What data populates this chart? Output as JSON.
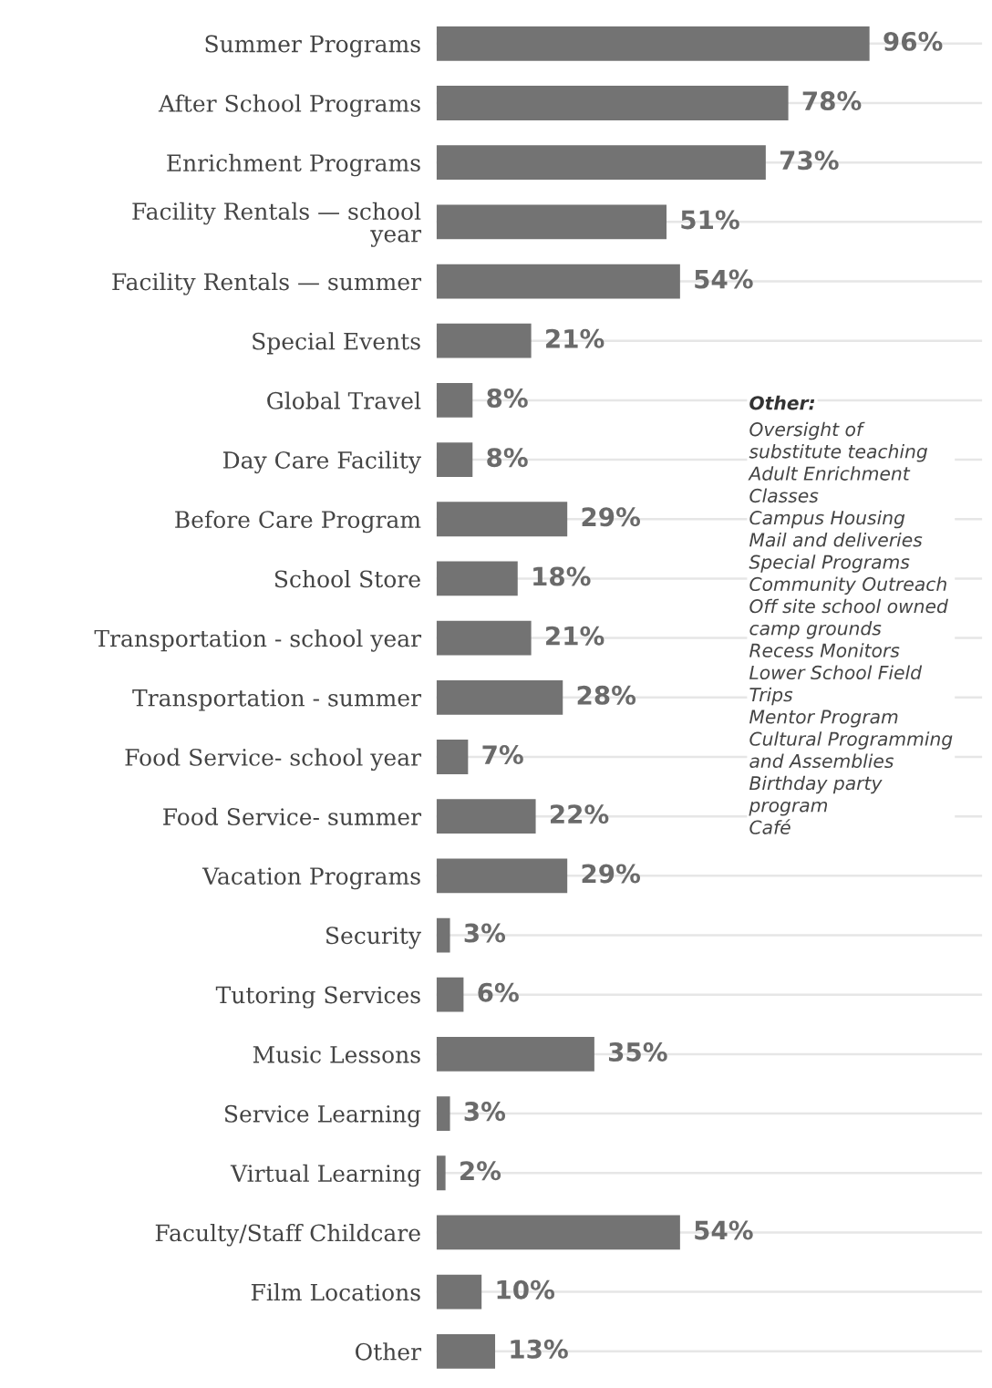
{
  "chart_data": {
    "type": "bar",
    "orientation": "horizontal",
    "categories": [
      "Summer Programs",
      "After School Programs",
      "Enrichment Programs",
      "Facility Rentals — school\nyear",
      "Facility Rentals — summer",
      "Special Events",
      "Global Travel",
      "Day Care Facility",
      "Before Care Program",
      "School Store",
      "Transportation - school year",
      "Transportation - summer",
      "Food Service- school year",
      "Food Service- summer",
      "Vacation Programs",
      "Security",
      "Tutoring Services",
      "Music Lessons",
      "Service Learning",
      "Virtual Learning",
      "Faculty/Staff Childcare",
      "Film Locations",
      "Other"
    ],
    "values": [
      96,
      78,
      73,
      51,
      54,
      21,
      8,
      8,
      29,
      18,
      21,
      28,
      7,
      22,
      29,
      3,
      6,
      35,
      3,
      2,
      54,
      10,
      13
    ],
    "value_labels": [
      "96%",
      "78%",
      "73%",
      "51%",
      "54%",
      "21%",
      "8%",
      "8%",
      "29%",
      "18%",
      "21%",
      "28%",
      "7%",
      "22%",
      "29%",
      "3%",
      "6%",
      "35%",
      "3%",
      "2%",
      "54%",
      "10%",
      "13%"
    ],
    "color": "#737373",
    "grid": "y",
    "tick_labels": "y",
    "annotations": [
      "Other:\nOversight of\nsubstitute teaching\nAdult Enrichment\nClasses\nCampus Housing\nMail and deliveries\nSpecial Programs\nCommunity Outreach\nOff site school owned\ncamp grounds\nRecess Monitors\nLower School Field\nTrips\nMentor Program\nCultural Programming\nand Assemblies\nBirthday party\nprogram\nCafé"
    ]
  }
}
